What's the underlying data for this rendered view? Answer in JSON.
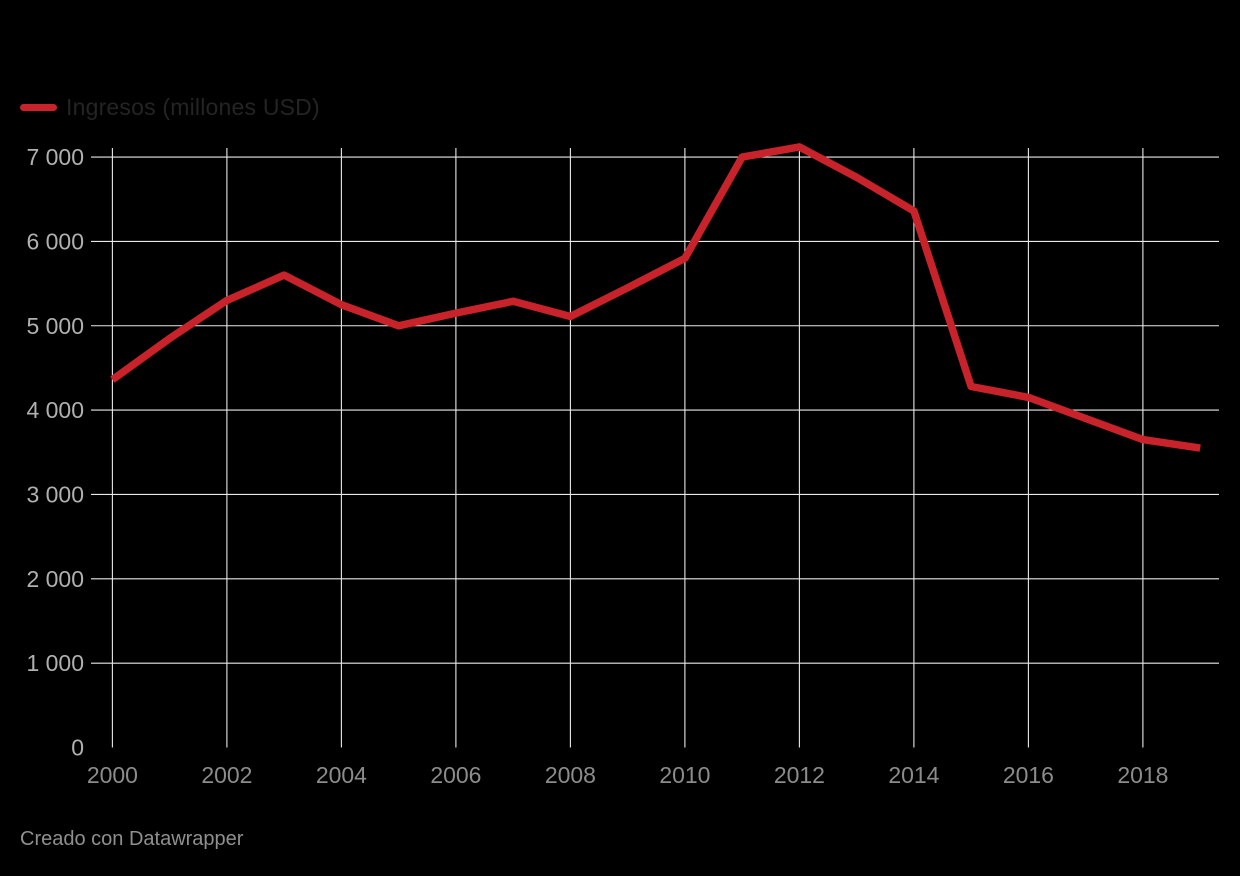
{
  "legend": {
    "label": "Ingresos (millones USD)",
    "color": "#c8232b"
  },
  "footer": {
    "text": "Creado con Datawrapper"
  },
  "colors": {
    "background": "#000000",
    "gridline": "#e9e9e9",
    "baseline_left": "#e9e9e9",
    "baseline_right": "#1f1f1f",
    "y_tick_label": "#b0b0b0",
    "x_tick_label": "#8c8c8c",
    "series_red": "#c8232b"
  },
  "chart_data": {
    "type": "line",
    "title": "",
    "xlabel": "",
    "ylabel": "",
    "grid": true,
    "legend_position": "top-left",
    "x": [
      2000,
      2001,
      2002,
      2003,
      2004,
      2005,
      2006,
      2007,
      2008,
      2009,
      2010,
      2011,
      2012,
      2013,
      2014,
      2015,
      2016,
      2017,
      2018,
      2019
    ],
    "series": [
      {
        "name": "Ingresos (millones USD)",
        "color": "#c8232b",
        "values": [
          4360,
          4850,
          5300,
          5600,
          5250,
          5000,
          5150,
          5290,
          5110,
          5450,
          5800,
          7000,
          7120,
          6760,
          6360,
          4280,
          4150,
          3900,
          3650,
          3550
        ]
      }
    ],
    "xlim": [
      2000,
      2019
    ],
    "ylim": [
      0,
      7300
    ],
    "x_ticks": [
      {
        "value": 2000,
        "label": "2000"
      },
      {
        "value": 2002,
        "label": "2002"
      },
      {
        "value": 2004,
        "label": "2004"
      },
      {
        "value": 2006,
        "label": "2006"
      },
      {
        "value": 2008,
        "label": "2008"
      },
      {
        "value": 2010,
        "label": "2010"
      },
      {
        "value": 2012,
        "label": "2012"
      },
      {
        "value": 2014,
        "label": "2014"
      },
      {
        "value": 2016,
        "label": "2016"
      },
      {
        "value": 2018,
        "label": "2018"
      }
    ],
    "y_ticks": [
      {
        "value": 0,
        "label": "0"
      },
      {
        "value": 1000,
        "label": "1 000"
      },
      {
        "value": 2000,
        "label": "2 000"
      },
      {
        "value": 3000,
        "label": "3 000"
      },
      {
        "value": 4000,
        "label": "4 000"
      },
      {
        "value": 5000,
        "label": "5 000"
      },
      {
        "value": 6000,
        "label": "6 000"
      },
      {
        "value": 7000,
        "label": "7 000"
      }
    ]
  }
}
